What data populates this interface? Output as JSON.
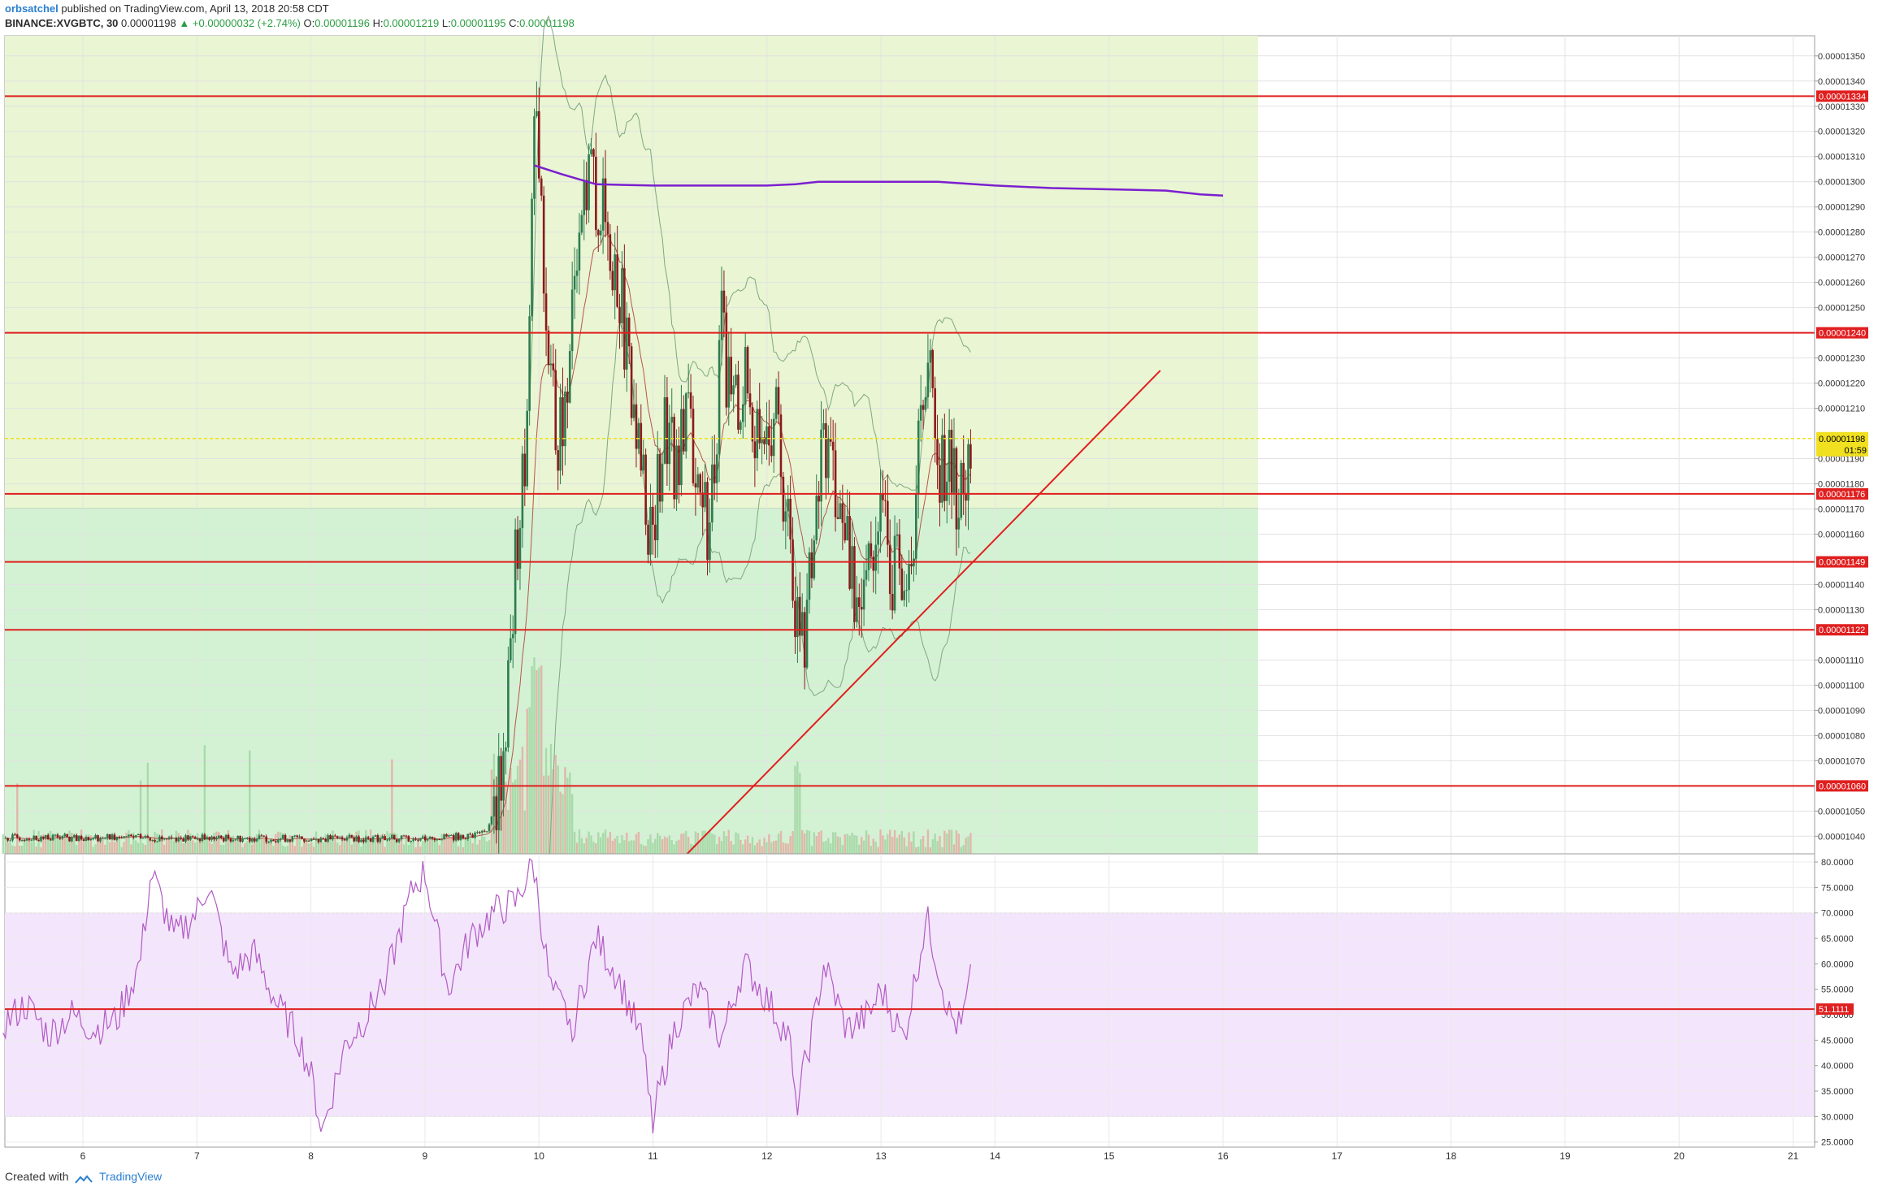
{
  "header": {
    "author": "orbsatchel",
    "published": "published on TradingView.com, April 13, 2018 20:58 CDT",
    "symbol": "BINANCE:XVGBTC, 30",
    "last": "0.00001198",
    "change": "+0.00000032 (+2.74%)",
    "o_label": "O:",
    "o_value": "0.00001196",
    "h_label": "H:",
    "h_value": "0.00001219",
    "l_label": "L:",
    "l_value": "0.00001195",
    "c_label": "C:",
    "c_value": "0.00001198"
  },
  "footer": {
    "created_with": "Created with",
    "brand": "TradingView"
  },
  "colors": {
    "up": "#2d7b4f",
    "down": "#8b1a1a",
    "support": "#e01f1f",
    "zone_upper": "#e9f5d3",
    "zone_lower": "#d3f2d3",
    "rsi_band": "#f3e5fb",
    "rsi_line": "#b25bc5",
    "ma_line": "#7b1fcf",
    "price_line": "#f0e020"
  },
  "chart_data": [
    {
      "type": "candlestick",
      "symbol": "BINANCE:XVGBTC",
      "interval": "30",
      "x_tick_labels": [
        "6",
        "7",
        "8",
        "9",
        "10",
        "11",
        "12",
        "13",
        "14",
        "15",
        "16",
        "17",
        "18",
        "19",
        "20",
        "21"
      ],
      "y_tick_labels": [
        "0.00001350",
        "0.00001340",
        "0.00001330",
        "0.00001320",
        "0.00001310",
        "0.00001300",
        "0.00001290",
        "0.00001280",
        "0.00001270",
        "0.00001260",
        "0.00001250",
        "0.00001230",
        "0.00001220",
        "0.00001210",
        "0.00001190",
        "0.00001180",
        "0.00001170",
        "0.00001160",
        "0.00001140",
        "0.00001130",
        "0.00001110",
        "0.00001100",
        "0.00001090",
        "0.00001080",
        "0.00001070",
        "0.00001050",
        "0.00001040"
      ],
      "ylim": [
        1.033e-05,
        1.358e-05
      ],
      "horizontal_levels": [
        "0.00001334",
        "0.00001240",
        "0.00001176",
        "0.00001149",
        "0.00001122",
        "0.00001060"
      ],
      "current_price": "0.00001198",
      "countdown": "01:59",
      "price_path": [
        [
          5.3,
          1.0392
        ],
        [
          6.0,
          1.0395
        ],
        [
          7.0,
          1.0392
        ],
        [
          8.0,
          1.039
        ],
        [
          9.0,
          1.0393
        ],
        [
          9.4,
          1.04
        ],
        [
          9.55,
          1.043
        ],
        [
          9.6,
          1.048
        ],
        [
          9.65,
          1.06
        ],
        [
          9.7,
          1.08
        ],
        [
          9.75,
          1.11
        ],
        [
          9.8,
          1.15
        ],
        [
          9.85,
          1.175
        ],
        [
          9.9,
          1.205
        ],
        [
          9.93,
          1.26
        ],
        [
          9.96,
          1.33
        ],
        [
          10.0,
          1.3
        ],
        [
          10.05,
          1.25
        ],
        [
          10.1,
          1.22
        ],
        [
          10.15,
          1.205
        ],
        [
          10.2,
          1.195
        ],
        [
          10.3,
          1.26
        ],
        [
          10.4,
          1.31
        ],
        [
          10.5,
          1.29
        ],
        [
          10.6,
          1.28
        ],
        [
          10.7,
          1.26
        ],
        [
          10.8,
          1.22
        ],
        [
          10.9,
          1.18
        ],
        [
          11.0,
          1.16
        ],
        [
          11.1,
          1.2
        ],
        [
          11.2,
          1.19
        ],
        [
          11.3,
          1.21
        ],
        [
          11.4,
          1.18
        ],
        [
          11.5,
          1.16
        ],
        [
          11.6,
          1.24
        ],
        [
          11.7,
          1.21
        ],
        [
          11.8,
          1.22
        ],
        [
          11.9,
          1.2
        ],
        [
          12.0,
          1.21
        ],
        [
          12.1,
          1.2
        ],
        [
          12.2,
          1.16
        ],
        [
          12.25,
          1.13
        ],
        [
          12.3,
          1.115
        ],
        [
          12.4,
          1.145
        ],
        [
          12.5,
          1.2
        ],
        [
          12.6,
          1.18
        ],
        [
          12.7,
          1.15
        ],
        [
          12.8,
          1.135
        ],
        [
          12.9,
          1.16
        ],
        [
          13.0,
          1.17
        ],
        [
          13.1,
          1.14
        ],
        [
          13.2,
          1.15
        ],
        [
          13.3,
          1.17
        ],
        [
          13.4,
          1.235
        ],
        [
          13.5,
          1.19
        ],
        [
          13.6,
          1.185
        ],
        [
          13.7,
          1.172
        ],
        [
          13.8,
          1.198
        ]
      ],
      "price_scale": "1e-5",
      "moving_average": [
        [
          9.96,
          1.3065
        ],
        [
          10.2,
          1.303
        ],
        [
          10.5,
          1.299
        ],
        [
          11.0,
          1.2985
        ],
        [
          11.5,
          1.2985
        ],
        [
          12.0,
          1.2985
        ],
        [
          12.25,
          1.299
        ],
        [
          12.45,
          1.3
        ],
        [
          13.0,
          1.3
        ],
        [
          13.5,
          1.3
        ],
        [
          14.0,
          1.2985
        ],
        [
          14.5,
          1.2975
        ],
        [
          15.0,
          1.297
        ],
        [
          15.5,
          1.2965
        ],
        [
          15.8,
          1.295
        ],
        [
          16.0,
          1.2945
        ]
      ],
      "trendline": [
        [
          11.3,
          1.033
        ],
        [
          15.45,
          1.225
        ]
      ]
    },
    {
      "type": "line",
      "name": "RSI",
      "y_tick_labels": [
        "80.0000",
        "75.0000",
        "70.0000",
        "65.0000",
        "60.0000",
        "55.0000",
        "50.0000",
        "45.0000",
        "40.0000",
        "35.0000",
        "30.0000",
        "25.0000"
      ],
      "ylim": [
        24.0,
        81.6
      ],
      "band": [
        30,
        70
      ],
      "level": "51.1111",
      "values": [
        [
          5.3,
          48
        ],
        [
          5.5,
          52
        ],
        [
          5.7,
          46
        ],
        [
          5.9,
          50
        ],
        [
          6.1,
          47
        ],
        [
          6.3,
          49
        ],
        [
          6.5,
          60
        ],
        [
          6.6,
          78
        ],
        [
          6.8,
          65
        ],
        [
          7.0,
          70
        ],
        [
          7.1,
          76
        ],
        [
          7.3,
          58
        ],
        [
          7.5,
          62
        ],
        [
          7.7,
          52
        ],
        [
          7.9,
          45
        ],
        [
          8.0,
          38
        ],
        [
          8.1,
          27
        ],
        [
          8.3,
          44
        ],
        [
          8.5,
          50
        ],
        [
          8.7,
          60
        ],
        [
          8.9,
          75
        ],
        [
          9.0,
          78
        ],
        [
          9.2,
          55
        ],
        [
          9.4,
          65
        ],
        [
          9.6,
          70
        ],
        [
          9.8,
          72
        ],
        [
          9.95,
          80
        ],
        [
          10.1,
          55
        ],
        [
          10.3,
          48
        ],
        [
          10.5,
          65
        ],
        [
          10.7,
          57
        ],
        [
          10.9,
          45
        ],
        [
          11.0,
          30
        ],
        [
          11.2,
          48
        ],
        [
          11.4,
          55
        ],
        [
          11.6,
          45
        ],
        [
          11.8,
          60
        ],
        [
          12.0,
          53
        ],
        [
          12.2,
          45
        ],
        [
          12.25,
          31
        ],
        [
          12.4,
          47
        ],
        [
          12.5,
          60
        ],
        [
          12.7,
          47
        ],
        [
          12.9,
          50
        ],
        [
          13.0,
          55
        ],
        [
          13.2,
          45
        ],
        [
          13.4,
          69
        ],
        [
          13.6,
          50
        ],
        [
          13.7,
          47
        ],
        [
          13.8,
          58
        ]
      ]
    }
  ]
}
